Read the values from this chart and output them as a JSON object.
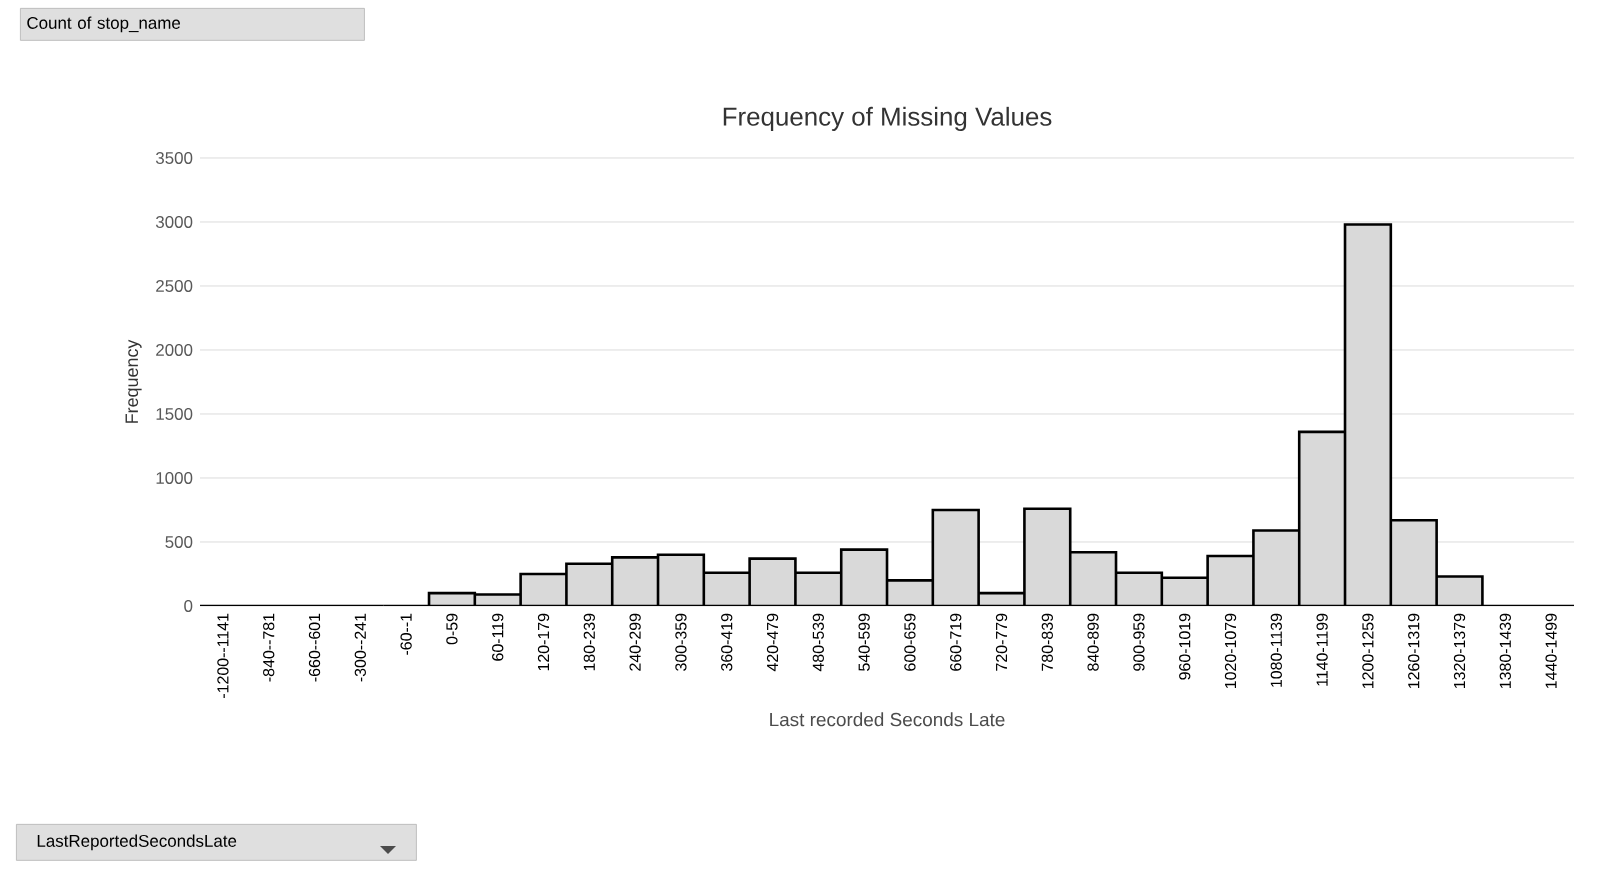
{
  "chart_data": {
    "type": "bar",
    "title": "Frequency of Missing Values",
    "xlabel": "Last recorded Seconds Late",
    "ylabel": "Frequency",
    "categories": [
      "-1200--1141",
      "-840--781",
      "-660--601",
      "-300--241",
      "-60--1",
      "0-59",
      "60-119",
      "120-179",
      "180-239",
      "240-299",
      "300-359",
      "360-419",
      "420-479",
      "480-539",
      "540-599",
      "600-659",
      "660-719",
      "720-779",
      "780-839",
      "840-899",
      "900-959",
      "960-1019",
      "1020-1079",
      "1080-1139",
      "1140-1199",
      "1200-1259",
      "1260-1319",
      "1320-1379",
      "1380-1439",
      "1440-1499"
    ],
    "values": [
      0,
      0,
      0,
      0,
      0,
      100,
      90,
      250,
      330,
      380,
      400,
      260,
      370,
      260,
      440,
      200,
      750,
      100,
      760,
      420,
      260,
      220,
      390,
      590,
      1360,
      2980,
      670,
      230,
      0,
      0
    ],
    "color": "#d9d9d9",
    "ylim": [
      0,
      3500
    ],
    "yticks": [
      0,
      500,
      1000,
      1500,
      2000,
      2500,
      3000,
      3500
    ],
    "grid": "y",
    "annotations": [
      "Count of stop_name",
      "LastReportedSecondsLate"
    ]
  }
}
